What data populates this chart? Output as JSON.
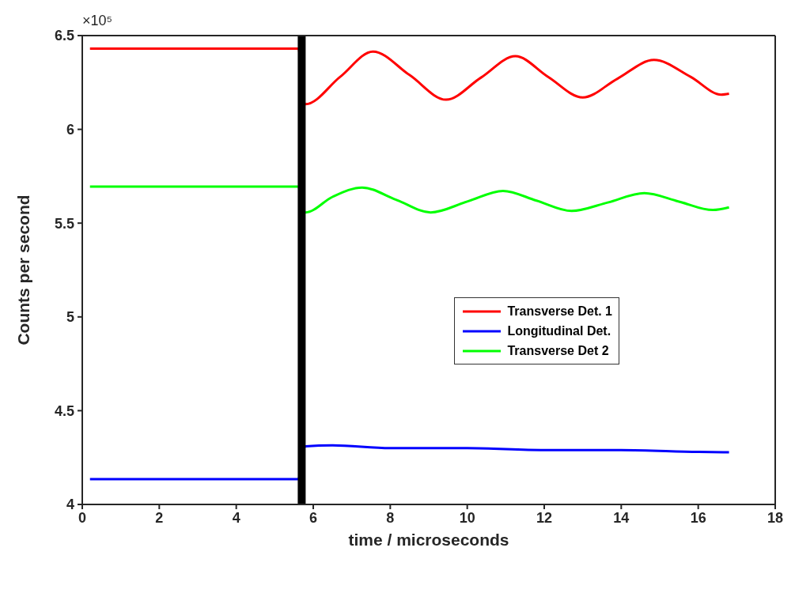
{
  "chart_data": {
    "type": "line",
    "xlabel": "time / microseconds",
    "ylabel": "Counts per second",
    "annotations": [
      "×10⁵"
    ],
    "xlim": [
      0,
      18
    ],
    "xticks": [
      0,
      2,
      4,
      6,
      8,
      10,
      12,
      14,
      16,
      18
    ],
    "ylim": [
      4,
      6.5
    ],
    "yticks": [
      4,
      4.5,
      5,
      5.5,
      6,
      6.5
    ],
    "legend": "right",
    "marker": "none",
    "line_style": "solid",
    "ref_lines": [
      {
        "axis": "x",
        "value": 5.7,
        "color": "#000000"
      }
    ],
    "series": [
      {
        "name": "Transverse Det. 1",
        "color": "#ff0000",
        "x": [
          0.2,
          5.6,
          5.8,
          6.7,
          7.55,
          8.5,
          9.45,
          10.35,
          11.25,
          12.1,
          13.0,
          13.9,
          14.85,
          15.8,
          16.6,
          16.8
        ],
        "values": [
          6.43,
          6.43,
          6.134,
          6.28,
          6.415,
          6.29,
          6.158,
          6.275,
          6.39,
          6.28,
          6.17,
          6.27,
          6.37,
          6.28,
          6.185,
          6.19
        ]
      },
      {
        "name": "Longitudinal Det.",
        "color": "#0000ff",
        "x": [
          0.2,
          5.6,
          5.8,
          6.5,
          8,
          10,
          12,
          14,
          16,
          16.8
        ],
        "values": [
          4.135,
          4.135,
          4.31,
          4.315,
          4.3,
          4.3,
          4.29,
          4.29,
          4.28,
          4.278
        ]
      },
      {
        "name": "Transverse Det 2",
        "color": "#00ff00",
        "x": [
          0.2,
          5.6,
          5.8,
          6.5,
          7.27,
          8.15,
          9.05,
          10.0,
          10.93,
          11.8,
          12.71,
          13.65,
          14.6,
          15.5,
          16.38,
          16.8
        ],
        "values": [
          5.695,
          5.695,
          5.557,
          5.64,
          5.69,
          5.625,
          5.557,
          5.615,
          5.672,
          5.62,
          5.565,
          5.61,
          5.66,
          5.615,
          5.57,
          5.584
        ]
      }
    ]
  }
}
